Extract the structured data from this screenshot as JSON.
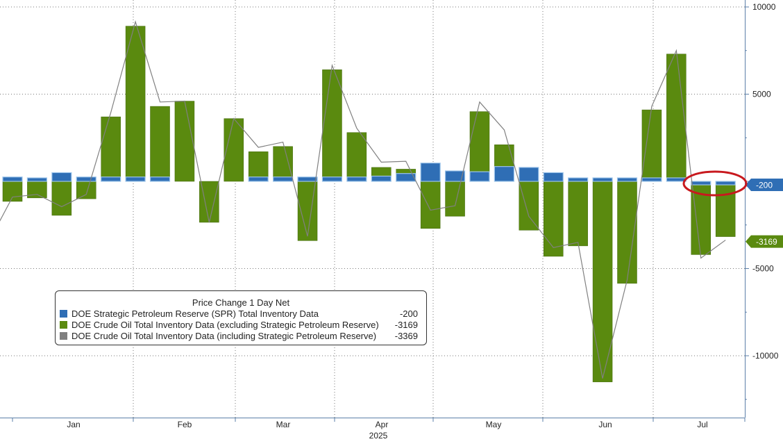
{
  "chart_data": {
    "type": "bar",
    "title": "",
    "xlabel": "2025",
    "ylabel": "",
    "ylim": [
      -12500,
      10000
    ],
    "y_ticks": [
      10000,
      5000,
      -5000,
      -10000
    ],
    "y_tick_labels": [
      "10000",
      "5000",
      "-5000",
      "-10000"
    ],
    "x_axis_labels": [
      "Jan",
      "Feb",
      "Mar",
      "Apr",
      "May",
      "Jun",
      "Jul"
    ],
    "x_axis_year": "2025",
    "grid": true,
    "legend_position": "bottom-left",
    "colors": {
      "spr": "#2f6eb5",
      "crude": "#5a8a0f",
      "total": "#808080"
    },
    "weeks": [
      "2024-12-27",
      "2025-01-03",
      "2025-01-10",
      "2025-01-17",
      "2025-01-24",
      "2025-01-31",
      "2025-02-07",
      "2025-02-14",
      "2025-02-21",
      "2025-02-28",
      "2025-03-07",
      "2025-03-14",
      "2025-03-21",
      "2025-03-28",
      "2025-04-04",
      "2025-04-11",
      "2025-04-18",
      "2025-04-25",
      "2025-05-02",
      "2025-05-09",
      "2025-05-16",
      "2025-05-23",
      "2025-05-30",
      "2025-06-06",
      "2025-06-13",
      "2025-06-20",
      "2025-06-27",
      "2025-07-04",
      "2025-07-11",
      "2025-07-18"
    ],
    "series": [
      {
        "name": "DOE Strategic Petroleum Reserve (SPR) Total Inventory Data",
        "values": [
          250,
          200,
          500,
          250,
          250,
          250,
          250,
          0,
          0,
          0,
          250,
          250,
          250,
          250,
          250,
          300,
          450,
          1050,
          600,
          550,
          850,
          800,
          500,
          200,
          200,
          200,
          200,
          200,
          -200,
          -200
        ]
      },
      {
        "name": "DOE Crude Oil Total Inventory Data (excluding Strategic Petroleum Reserve)",
        "values": [
          -1150,
          -950,
          -1950,
          -1000,
          3700,
          8900,
          4300,
          4600,
          -2350,
          3600,
          1700,
          2000,
          -3400,
          6400,
          2800,
          800,
          700,
          -2700,
          -2000,
          4000,
          2100,
          -2800,
          -4300,
          -3700,
          -11500,
          -5850,
          4100,
          7300,
          -4200,
          -3169
        ]
      },
      {
        "name": "DOE Crude Oil Total Inventory Data (including Strategic Petroleum Reserve)",
        "values": [
          -900,
          -750,
          -1450,
          -750,
          3950,
          9150,
          4550,
          4600,
          -2350,
          3600,
          1950,
          2250,
          -3150,
          6650,
          3050,
          1100,
          1150,
          -1650,
          -1400,
          4550,
          2950,
          -2000,
          -3800,
          -3500,
          -11300,
          -5650,
          4300,
          7500,
          -4400,
          -3369
        ]
      }
    ],
    "last_values": {
      "spr": "-200",
      "crude": "-3169",
      "total": "-3369"
    },
    "legend": {
      "title": "Price Change 1 Day Net",
      "items": [
        {
          "name": "DOE Strategic Petroleum Reserve (SPR) Total Inventory Data",
          "value": "-200",
          "color": "#2f6eb5"
        },
        {
          "name": "DOE Crude Oil Total Inventory Data (excluding Strategic Petroleum Reserve)",
          "value": "-3169",
          "color": "#5a8a0f"
        },
        {
          "name": "DOE Crude Oil Total Inventory Data (including Strategic Petroleum Reserve)",
          "value": "-3369",
          "color": "#808080"
        }
      ]
    }
  }
}
